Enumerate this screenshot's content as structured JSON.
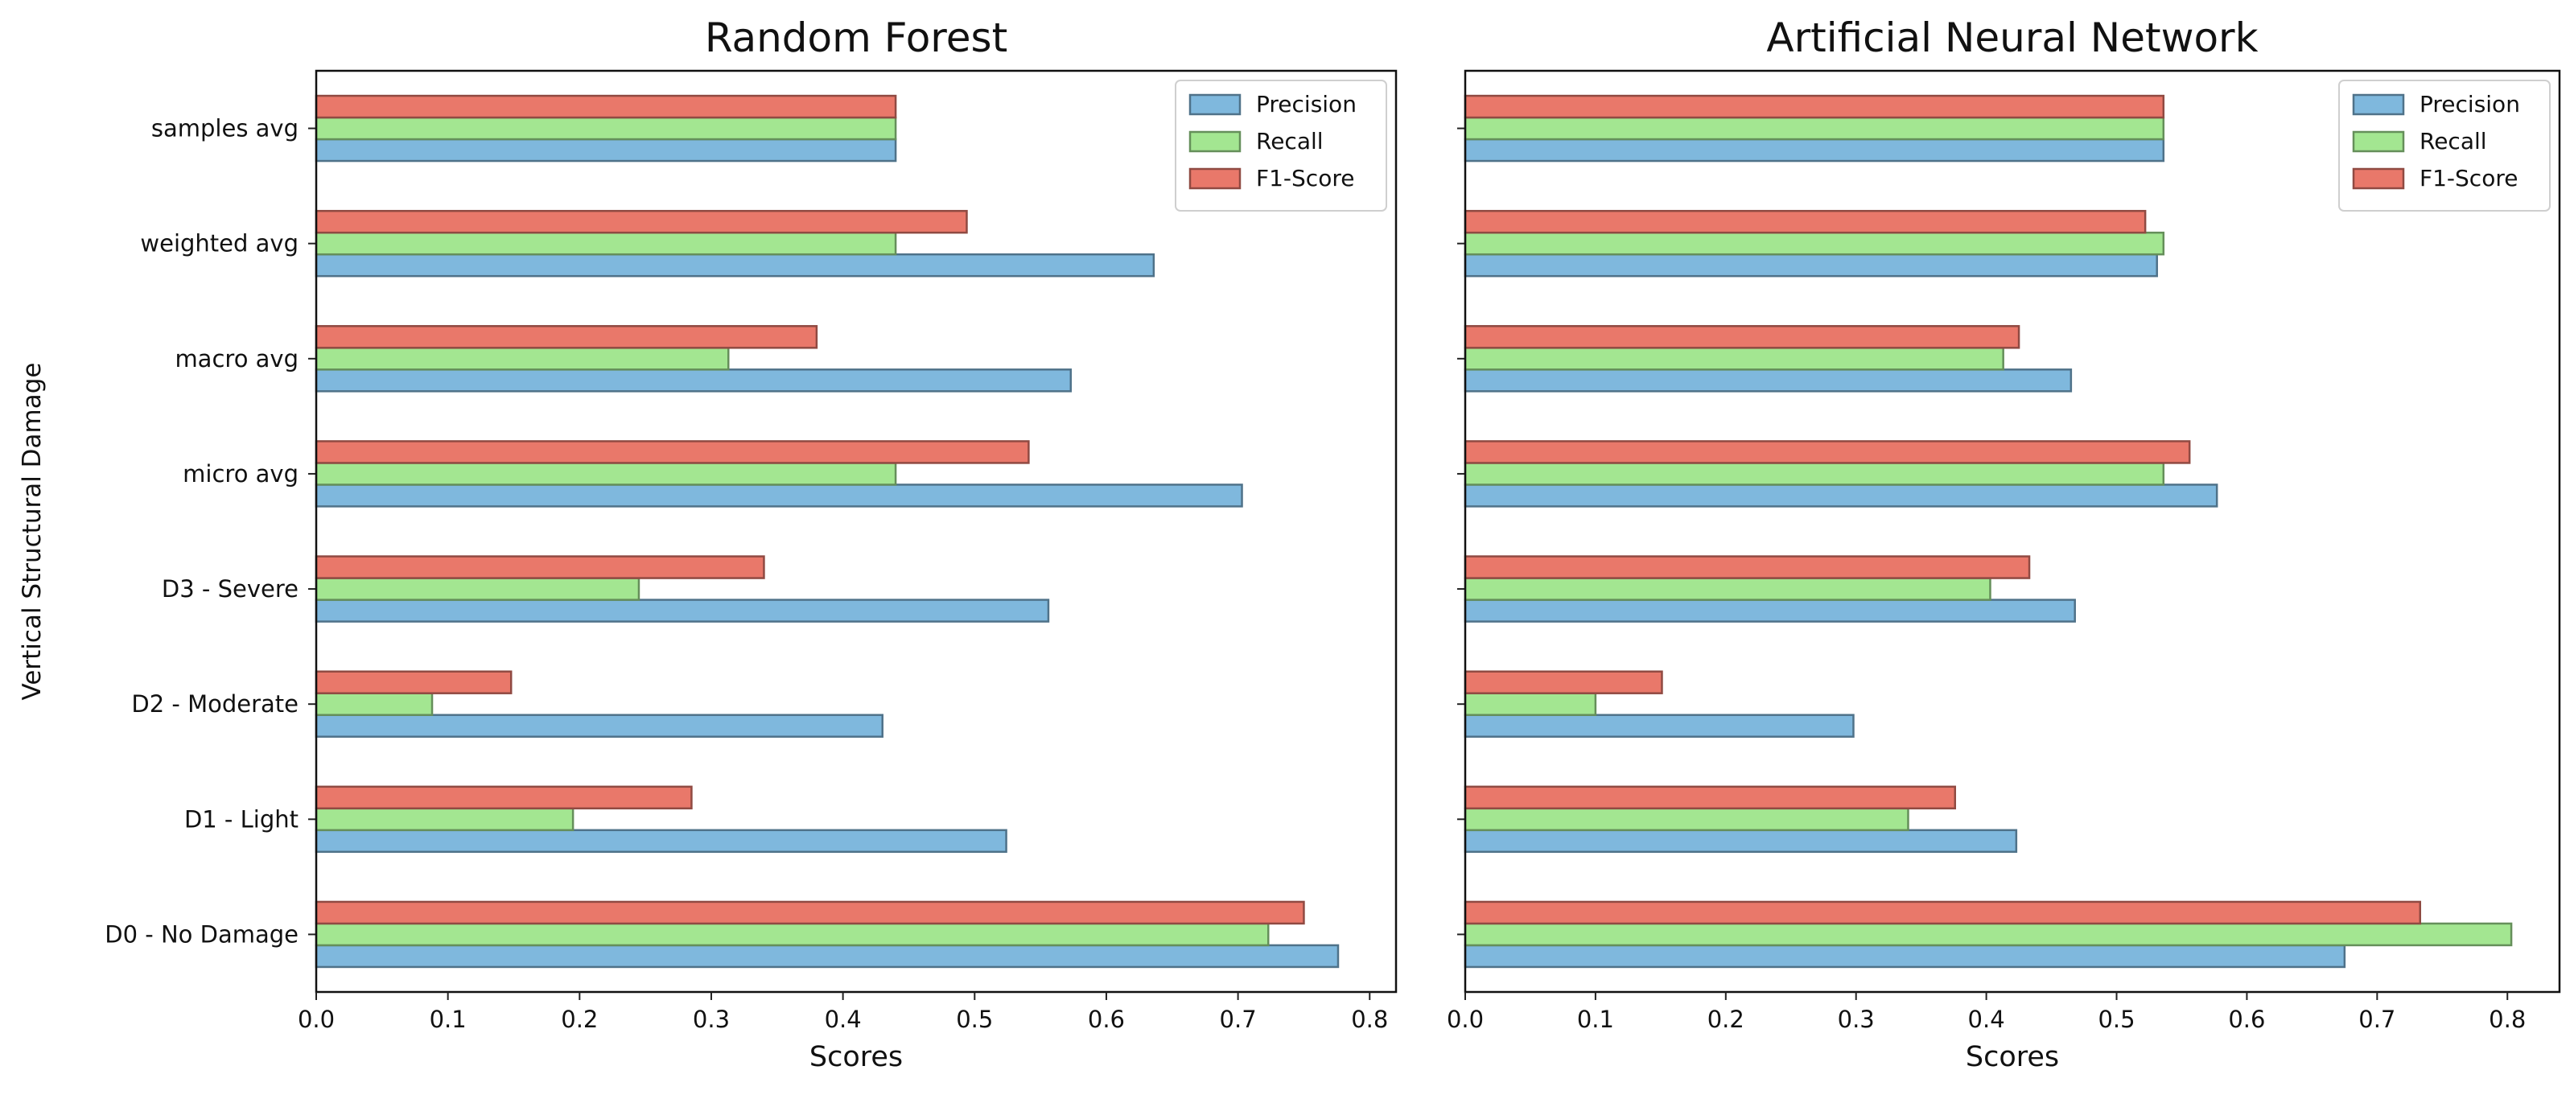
{
  "chart_data": [
    {
      "type": "bar",
      "orientation": "horizontal",
      "title": "Random Forest",
      "xlabel": "Scores",
      "ylabel": "Vertical Structural Damage",
      "xlim": [
        0,
        0.82
      ],
      "xticks": [
        "0.0",
        "0.1",
        "0.2",
        "0.3",
        "0.4",
        "0.5",
        "0.6",
        "0.7",
        "0.8"
      ],
      "categories": [
        "D0 - No Damage",
        "D1 - Light",
        "D2 - Moderate",
        "D3 - Severe",
        "micro avg",
        "macro avg",
        "weighted avg",
        "samples avg"
      ],
      "series": [
        {
          "name": "Precision",
          "color": "#7fb8dd",
          "values": [
            0.776,
            0.524,
            0.43,
            0.556,
            0.703,
            0.573,
            0.636,
            0.44
          ]
        },
        {
          "name": "Recall",
          "color": "#a3e691",
          "values": [
            0.723,
            0.195,
            0.088,
            0.245,
            0.44,
            0.313,
            0.44,
            0.44
          ]
        },
        {
          "name": "F1-Score",
          "color": "#e9786a",
          "values": [
            0.75,
            0.285,
            0.148,
            0.34,
            0.541,
            0.38,
            0.494,
            0.44
          ]
        }
      ],
      "legend_position": "top-right",
      "grid": false
    },
    {
      "type": "bar",
      "orientation": "horizontal",
      "title": "Artificial Neural Network",
      "xlabel": "Scores",
      "ylabel": "",
      "xlim": [
        0,
        0.84
      ],
      "xticks": [
        "0.0",
        "0.1",
        "0.2",
        "0.3",
        "0.4",
        "0.5",
        "0.6",
        "0.7",
        "0.8"
      ],
      "categories": [
        "D0 - No Damage",
        "D1 - Light",
        "D2 - Moderate",
        "D3 - Severe",
        "micro avg",
        "macro avg",
        "weighted avg",
        "samples avg"
      ],
      "series": [
        {
          "name": "Precision",
          "color": "#7fb8dd",
          "values": [
            0.675,
            0.423,
            0.298,
            0.468,
            0.577,
            0.465,
            0.531,
            0.536
          ]
        },
        {
          "name": "Recall",
          "color": "#a3e691",
          "values": [
            0.803,
            0.34,
            0.1,
            0.403,
            0.536,
            0.413,
            0.536,
            0.536
          ]
        },
        {
          "name": "F1-Score",
          "color": "#e9786a",
          "values": [
            0.733,
            0.376,
            0.151,
            0.433,
            0.556,
            0.425,
            0.522,
            0.536
          ]
        }
      ],
      "legend_position": "top-right",
      "grid": false
    }
  ]
}
